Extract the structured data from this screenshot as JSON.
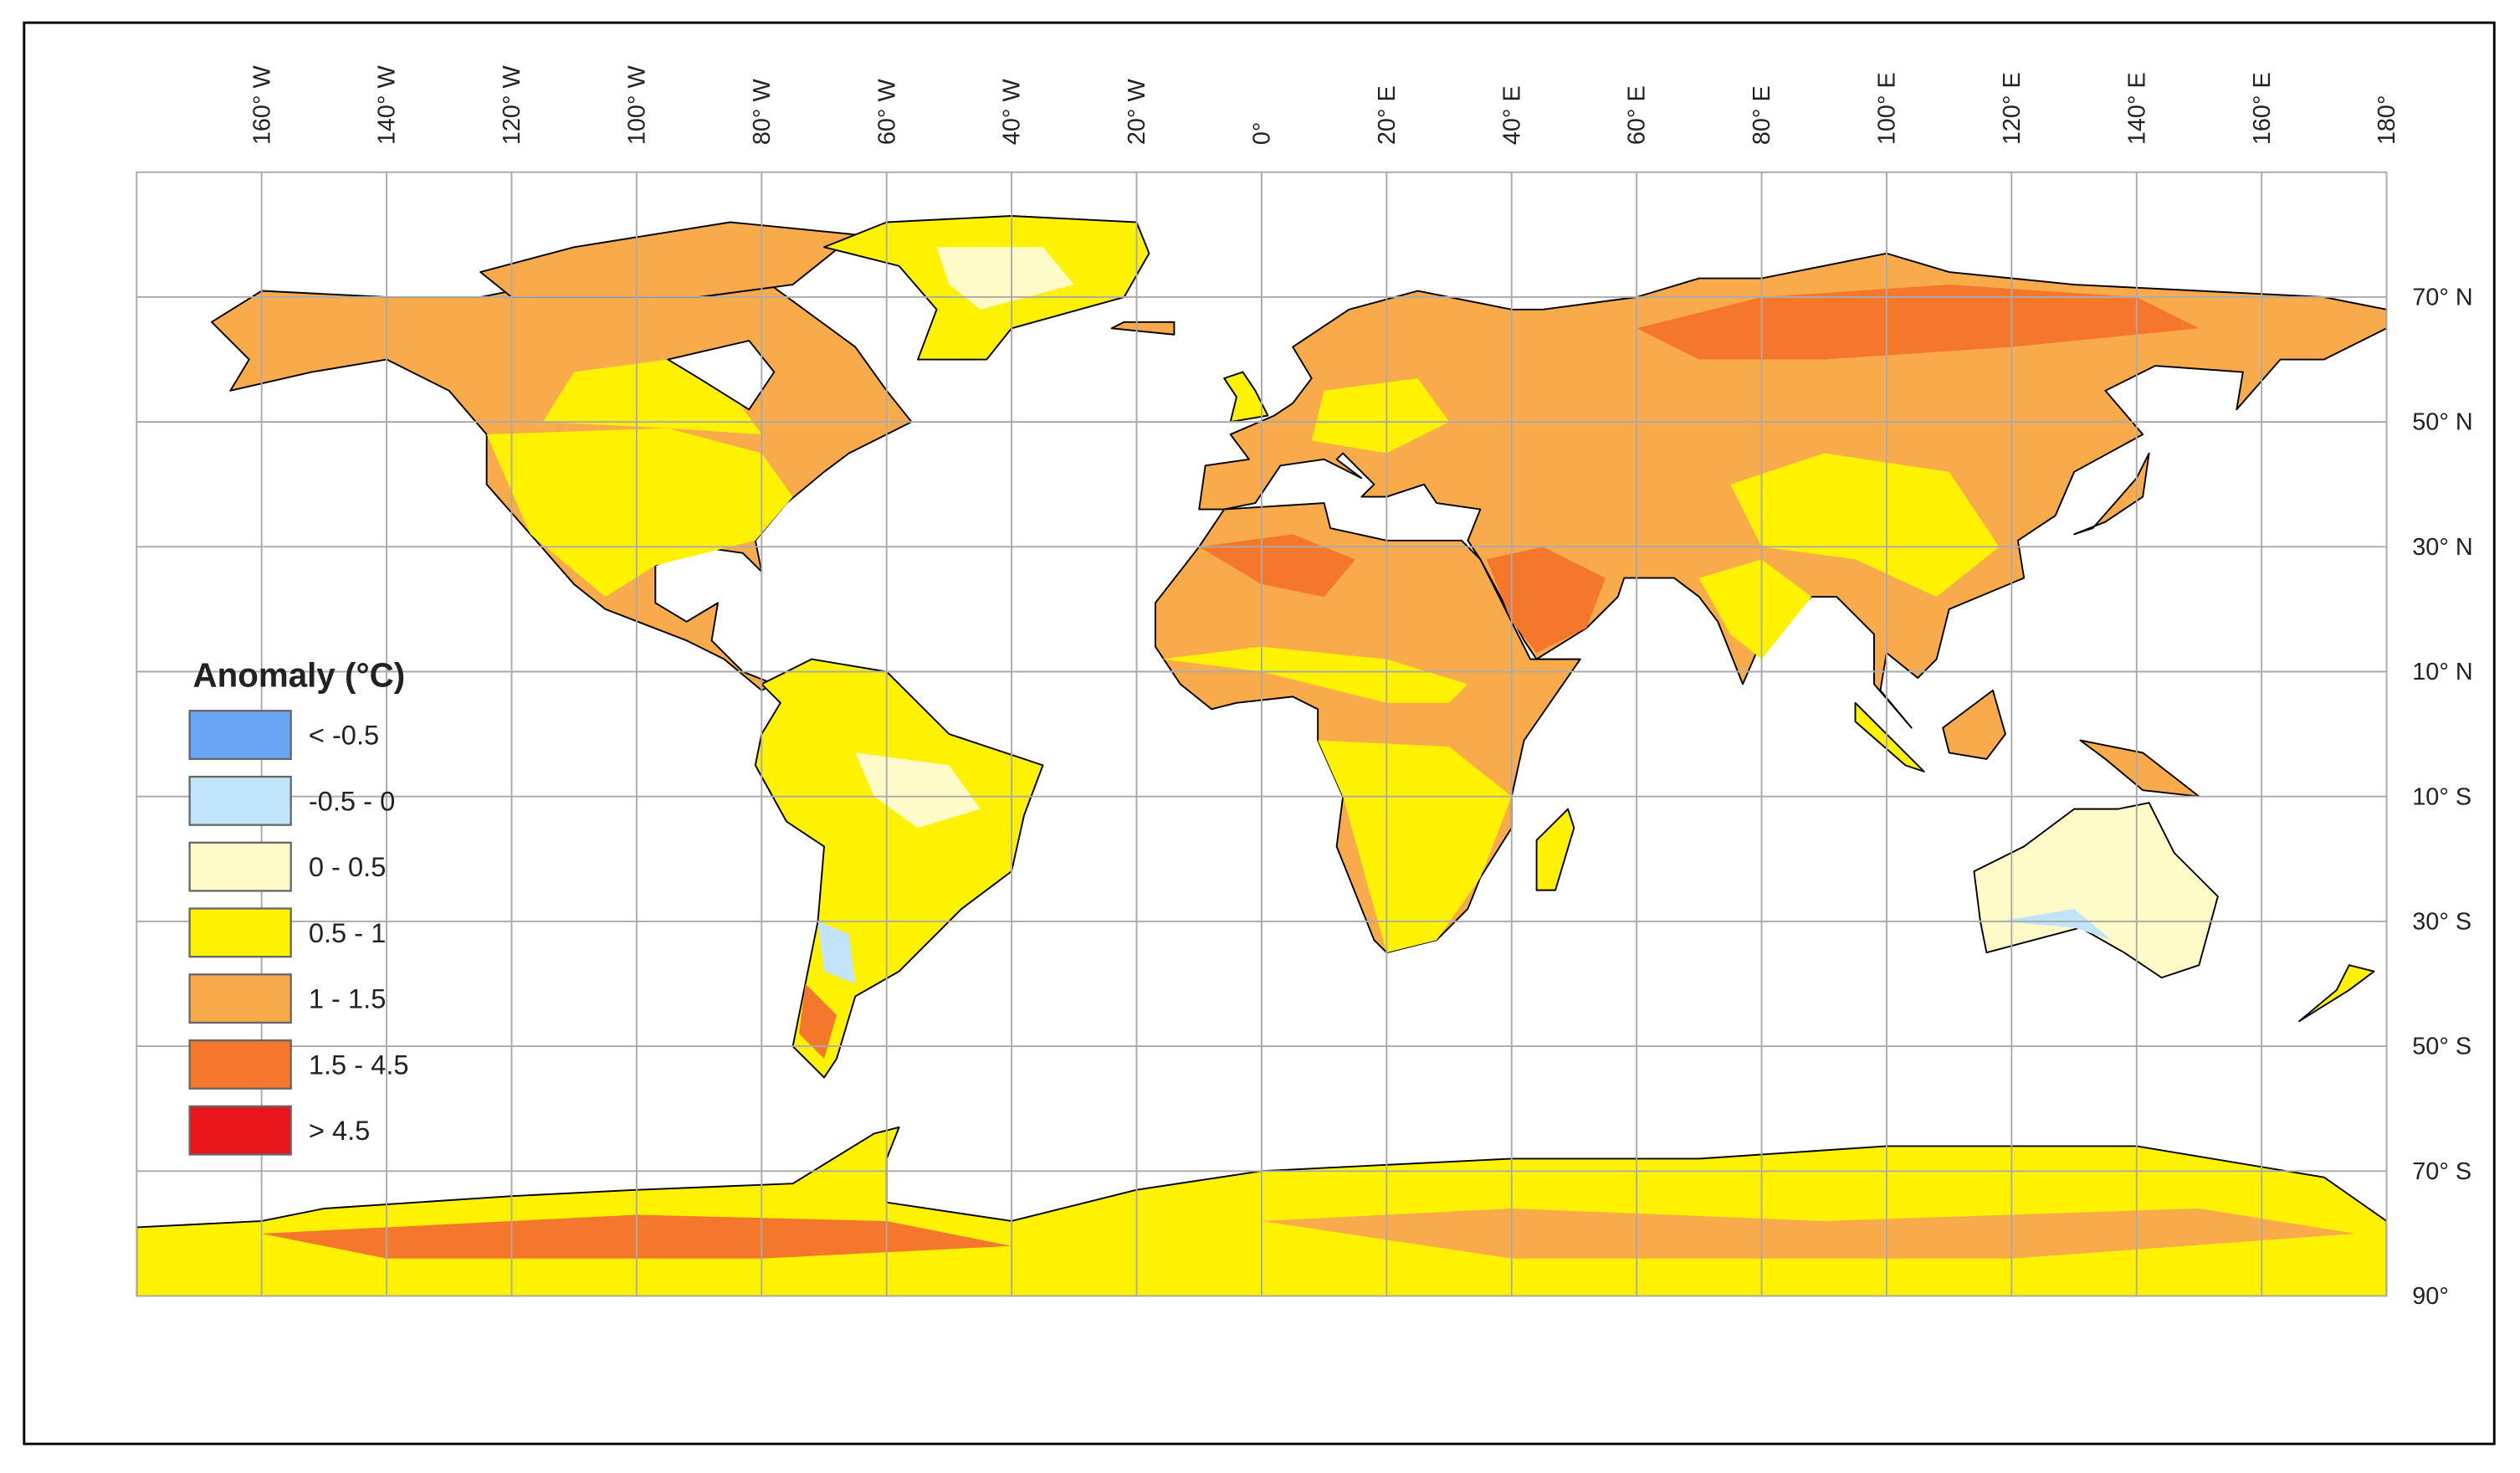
{
  "map": {
    "longitude_labels": [
      "160° W",
      "140° W",
      "120° W",
      "100° W",
      "80° W",
      "60° W",
      "40° W",
      "20° W",
      "0°",
      "20° E",
      "40° E",
      "60° E",
      "80° E",
      "100° E",
      "120° E",
      "140° E",
      "160° E",
      "180°"
    ],
    "latitude_labels": [
      "70° N",
      "50° N",
      "30° N",
      "10° N",
      "10° S",
      "30° S",
      "50° S",
      "70° S",
      "90°"
    ],
    "legend": {
      "title": "Anomaly (°C)",
      "items": [
        {
          "label": "< -0.5",
          "color": "#6aa6f4"
        },
        {
          "label": "-0.5 - 0",
          "color": "#c2e4fb"
        },
        {
          "label": "0 - 0.5",
          "color": "#fffbc9"
        },
        {
          "label": "0.5 - 1",
          "color": "#fff200"
        },
        {
          "label": "1 - 1.5",
          "color": "#f9ab4c"
        },
        {
          "label": "1.5 - 4.5",
          "color": "#f5772c"
        },
        {
          "label": "> 4.5",
          "color": "#e8161b"
        }
      ]
    }
  }
}
